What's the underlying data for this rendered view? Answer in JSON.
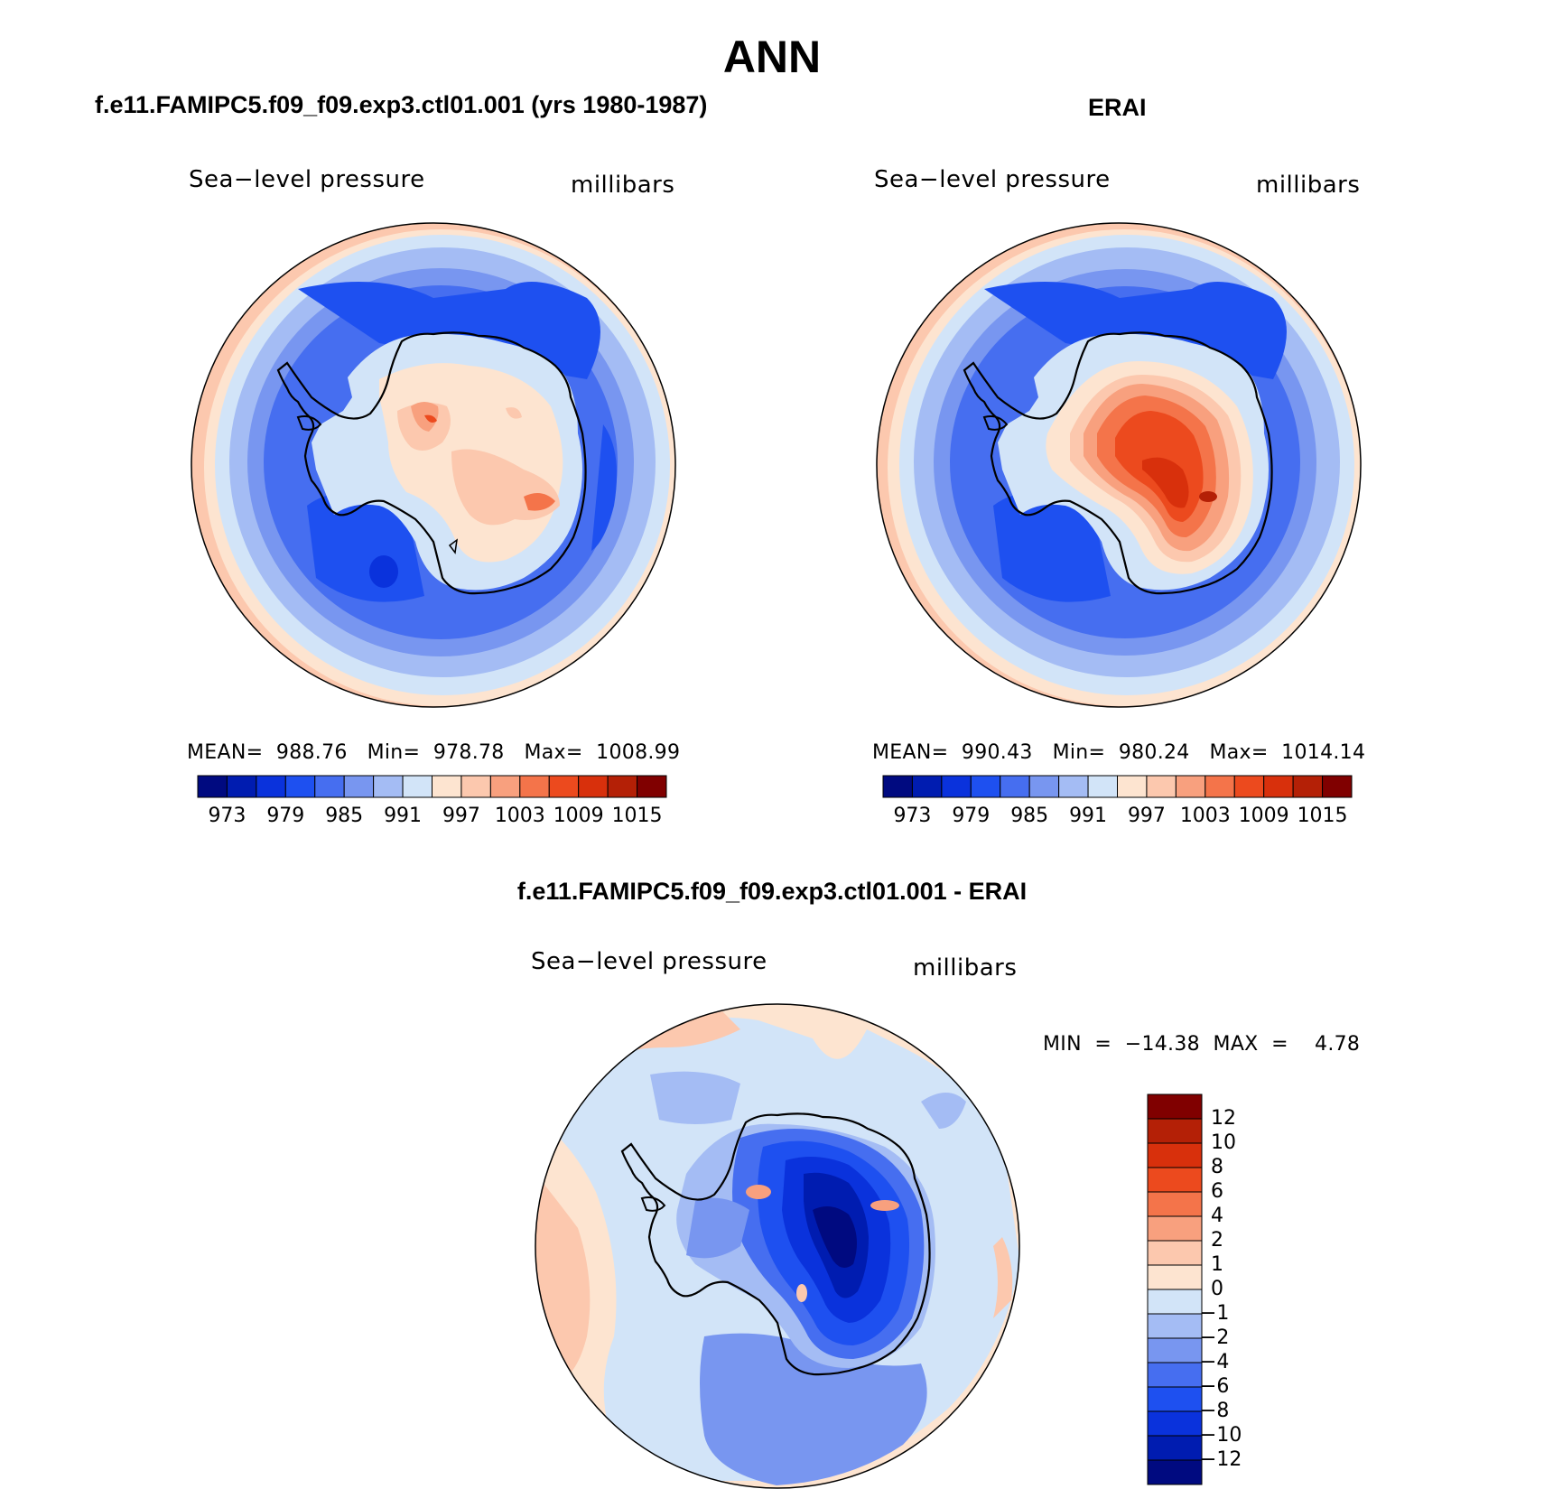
{
  "title": "ANN",
  "panels": {
    "left": {
      "title": "f.e11.FAMIPC5.f09_f09.exp3.ctl01.001 (yrs 1980-1987)",
      "variable": "Sea−level pressure",
      "units": "millibars",
      "stats": "MEAN=  988.76   Min=  978.78   Max=  1008.99"
    },
    "right": {
      "title": "ERAI",
      "variable": "Sea−level pressure",
      "units": "millibars",
      "stats": "MEAN=  990.43   Min=  980.24   Max=  1014.14"
    },
    "diff": {
      "title": "f.e11.FAMIPC5.f09_f09.exp3.ctl01.001 - ERAI",
      "variable": "Sea−level pressure",
      "units": "millibars",
      "stats": "MIN  =  −14.38  MAX  =    4.78"
    }
  },
  "chart_data": [
    {
      "type": "heatmap",
      "projection": "south-polar-stereographic",
      "title": "f.e11.FAMIPC5.f09_f09.exp3.ctl01.001 (yrs 1980-1987)",
      "variable": "Sea-level pressure",
      "units": "millibars",
      "mean": 988.76,
      "min": 978.78,
      "max": 1008.99,
      "colorbar_levels": [
        973,
        979,
        985,
        991,
        997,
        1003,
        1009,
        1015
      ],
      "colorbar_labels": [
        "973",
        "979",
        "985",
        "991",
        "997",
        "1003",
        "1009",
        "1015"
      ]
    },
    {
      "type": "heatmap",
      "projection": "south-polar-stereographic",
      "title": "ERAI",
      "variable": "Sea-level pressure",
      "units": "millibars",
      "mean": 990.43,
      "min": 980.24,
      "max": 1014.14,
      "colorbar_levels": [
        973,
        979,
        985,
        991,
        997,
        1003,
        1009,
        1015
      ],
      "colorbar_labels": [
        "973",
        "979",
        "985",
        "991",
        "997",
        "1003",
        "1009",
        "1015"
      ]
    },
    {
      "type": "heatmap",
      "projection": "south-polar-stereographic",
      "title": "f.e11.FAMIPC5.f09_f09.exp3.ctl01.001 - ERAI",
      "variable": "Sea-level pressure",
      "units": "millibars",
      "min": -14.38,
      "max": 4.78,
      "colorbar_levels": [
        12,
        10,
        8,
        6,
        4,
        2,
        1,
        0,
        -1,
        -2,
        -4,
        -6,
        -8,
        -10,
        -12
      ],
      "colorbar_labels": [
        "12",
        "10",
        "8",
        "6",
        "4",
        "2",
        "1",
        "0",
        "−1",
        "−2",
        "−4",
        "−6",
        "−8",
        "−10",
        "−12"
      ]
    }
  ],
  "palette": [
    "#000a80",
    "#001cb0",
    "#0a32dc",
    "#1e50f0",
    "#466ef0",
    "#7896f0",
    "#a4bcf4",
    "#d2e4f8",
    "#fde4d0",
    "#fcc8ae",
    "#f8a07e",
    "#f4744a",
    "#ec4a1e",
    "#d8300c",
    "#b42006",
    "#800000"
  ]
}
